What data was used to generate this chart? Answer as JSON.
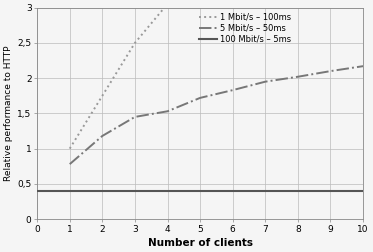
{
  "title": "",
  "xlabel": "Number of clients",
  "ylabel": "Relative performance to HTTP",
  "xlim": [
    0,
    10
  ],
  "ylim": [
    0,
    3
  ],
  "xticks": [
    0,
    1,
    2,
    3,
    4,
    5,
    6,
    7,
    8,
    9,
    10
  ],
  "yticks": [
    0,
    0.5,
    1,
    1.5,
    2,
    2.5,
    3
  ],
  "ytick_labels": [
    "0",
    "0,5",
    "1",
    "1,5",
    "2",
    "2,5",
    "3"
  ],
  "series": [
    {
      "label": "1 Mbit/s – 100ms",
      "x": [
        1,
        2,
        3,
        3.85
      ],
      "y": [
        1.0,
        1.75,
        2.5,
        2.97
      ],
      "color": "#999999",
      "linestyle": "dotted",
      "linewidth": 1.4,
      "dashes": null
    },
    {
      "label": "5 Mbit/s – 50ms",
      "x": [
        1,
        2,
        3,
        4,
        5,
        6,
        7,
        8,
        9,
        10
      ],
      "y": [
        0.78,
        1.18,
        1.45,
        1.53,
        1.72,
        1.83,
        1.95,
        2.02,
        2.1,
        2.17
      ],
      "color": "#777777",
      "linestyle": "dashdot",
      "linewidth": 1.4,
      "dashes": null
    },
    {
      "label": "100 Mbit/s – 5ms",
      "x": [
        0,
        1,
        2,
        3,
        4,
        5,
        6,
        7,
        8,
        9,
        10
      ],
      "y": [
        0.4,
        0.4,
        0.4,
        0.4,
        0.4,
        0.4,
        0.4,
        0.4,
        0.4,
        0.4,
        0.4
      ],
      "color": "#555555",
      "linestyle": "solid",
      "linewidth": 1.5,
      "dashes": null
    }
  ],
  "legend_fontsize": 6.0,
  "axis_fontsize": 6.5,
  "xlabel_fontsize": 7.5,
  "ylabel_fontsize": 6.5,
  "background_color": "#f5f5f5",
  "grid_color": "#bbbbbb",
  "spine_color": "#888888"
}
